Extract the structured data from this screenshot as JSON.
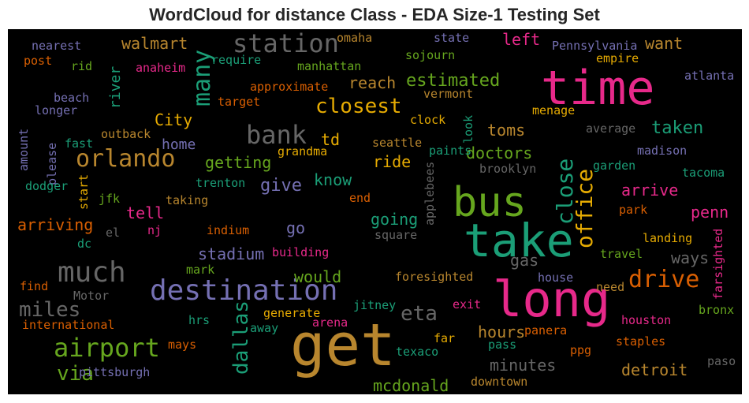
{
  "chart_data": {
    "type": "wordcloud",
    "title": "WordCloud for distance Class - EDA Size-1 Testing Set",
    "background": "#000000",
    "palette": "Dark2",
    "words": [
      {
        "text": "get",
        "color": "#b8862e"
      },
      {
        "text": "long",
        "color": "#e7298a"
      },
      {
        "text": "take",
        "color": "#1b9e77"
      },
      {
        "text": "time",
        "color": "#e7298a"
      },
      {
        "text": "bus",
        "color": "#66a61e"
      },
      {
        "text": "destination",
        "color": "#7570b3"
      },
      {
        "text": "much",
        "color": "#666666"
      },
      {
        "text": "station",
        "color": "#666666"
      },
      {
        "text": "airport",
        "color": "#66a61e"
      },
      {
        "text": "bank",
        "color": "#666666"
      },
      {
        "text": "orlando",
        "color": "#b8862e"
      },
      {
        "text": "many",
        "color": "#1b9e77"
      },
      {
        "text": "drive",
        "color": "#d95f02"
      },
      {
        "text": "office",
        "color": "#e6ab02"
      },
      {
        "text": "close",
        "color": "#1b9e77"
      },
      {
        "text": "closest",
        "color": "#e6ab02"
      },
      {
        "text": "dallas",
        "color": "#1b9e77"
      },
      {
        "text": "miles",
        "color": "#666666"
      },
      {
        "text": "via",
        "color": "#66a61e"
      },
      {
        "text": "eta",
        "color": "#666666"
      },
      {
        "text": "estimated",
        "color": "#66a61e"
      },
      {
        "text": "walmart",
        "color": "#b8862e"
      },
      {
        "text": "give",
        "color": "#7570b3"
      },
      {
        "text": "doctors",
        "color": "#66a61e"
      },
      {
        "text": "taken",
        "color": "#1b9e77"
      },
      {
        "text": "reach",
        "color": "#b8862e"
      },
      {
        "text": "stadium",
        "color": "#7570b3"
      },
      {
        "text": "getting",
        "color": "#66a61e"
      },
      {
        "text": "City",
        "color": "#e6ab02"
      },
      {
        "text": "tell",
        "color": "#e7298a"
      },
      {
        "text": "arriving",
        "color": "#d95f02"
      },
      {
        "text": "home",
        "color": "#7570b3"
      },
      {
        "text": "going",
        "color": "#1b9e77"
      },
      {
        "text": "hours",
        "color": "#b8862e"
      },
      {
        "text": "minutes",
        "color": "#666666"
      },
      {
        "text": "detroit",
        "color": "#b8862e"
      },
      {
        "text": "mcdonald",
        "color": "#66a61e"
      },
      {
        "text": "arrive",
        "color": "#e7298a"
      },
      {
        "text": "want",
        "color": "#b8862e"
      },
      {
        "text": "left",
        "color": "#e7298a"
      },
      {
        "text": "river",
        "color": "#1b9e77"
      },
      {
        "text": "toms",
        "color": "#b8862e"
      },
      {
        "text": "ride",
        "color": "#e6ab02"
      },
      {
        "text": "would",
        "color": "#66a61e"
      },
      {
        "text": "ways",
        "color": "#666666"
      },
      {
        "text": "penn",
        "color": "#e7298a"
      },
      {
        "text": "know",
        "color": "#1b9e77"
      },
      {
        "text": "go",
        "color": "#7570b3"
      },
      {
        "text": "td",
        "color": "#e6ab02"
      },
      {
        "text": "gas",
        "color": "#666666"
      },
      {
        "text": "nearest",
        "color": "#7570b3"
      },
      {
        "text": "post",
        "color": "#d95f02"
      },
      {
        "text": "rid",
        "color": "#66a61e"
      },
      {
        "text": "omaha",
        "color": "#b8862e"
      },
      {
        "text": "state",
        "color": "#7570b3"
      },
      {
        "text": "Pennsylvania",
        "color": "#7570b3"
      },
      {
        "text": "empire",
        "color": "#e6ab02"
      },
      {
        "text": "atlanta",
        "color": "#7570b3"
      },
      {
        "text": "anaheim",
        "color": "#e7298a"
      },
      {
        "text": "require",
        "color": "#1b9e77"
      },
      {
        "text": "manhattan",
        "color": "#66a61e"
      },
      {
        "text": "sojourn",
        "color": "#66a61e"
      },
      {
        "text": "approximate",
        "color": "#d95f02"
      },
      {
        "text": "vermont",
        "color": "#b8862e"
      },
      {
        "text": "beach",
        "color": "#7570b3"
      },
      {
        "text": "longer",
        "color": "#7570b3"
      },
      {
        "text": "target",
        "color": "#d95f02"
      },
      {
        "text": "menage",
        "color": "#e6ab02"
      },
      {
        "text": "clock",
        "color": "#e6ab02"
      },
      {
        "text": "look",
        "color": "#1b9e77"
      },
      {
        "text": "outback",
        "color": "#b8862e"
      },
      {
        "text": "fast",
        "color": "#1b9e77"
      },
      {
        "text": "amount",
        "color": "#7570b3"
      },
      {
        "text": "please",
        "color": "#7570b3"
      },
      {
        "text": "grandma",
        "color": "#e6ab02"
      },
      {
        "text": "seattle",
        "color": "#b8862e"
      },
      {
        "text": "paints",
        "color": "#1b9e77"
      },
      {
        "text": "average",
        "color": "#666666"
      },
      {
        "text": "madison",
        "color": "#7570b3"
      },
      {
        "text": "brooklyn",
        "color": "#666666"
      },
      {
        "text": "garden",
        "color": "#1b9e77"
      },
      {
        "text": "tacoma",
        "color": "#1b9e77"
      },
      {
        "text": "dodger",
        "color": "#1b9e77"
      },
      {
        "text": "start",
        "color": "#e6ab02"
      },
      {
        "text": "jfk",
        "color": "#66a61e"
      },
      {
        "text": "trenton",
        "color": "#1b9e77"
      },
      {
        "text": "taking",
        "color": "#b8862e"
      },
      {
        "text": "end",
        "color": "#d95f02"
      },
      {
        "text": "applebees",
        "color": "#666666"
      },
      {
        "text": "park",
        "color": "#d95f02"
      },
      {
        "text": "el",
        "color": "#666666"
      },
      {
        "text": "nj",
        "color": "#e7298a"
      },
      {
        "text": "indium",
        "color": "#d95f02"
      },
      {
        "text": "square",
        "color": "#666666"
      },
      {
        "text": "landing",
        "color": "#e6ab02"
      },
      {
        "text": "farsighted",
        "color": "#e7298a"
      },
      {
        "text": "dc",
        "color": "#1b9e77"
      },
      {
        "text": "building",
        "color": "#e7298a"
      },
      {
        "text": "travel",
        "color": "#66a61e"
      },
      {
        "text": "mark",
        "color": "#66a61e"
      },
      {
        "text": "foresighted",
        "color": "#b8862e"
      },
      {
        "text": "house",
        "color": "#7570b3"
      },
      {
        "text": "find",
        "color": "#d95f02"
      },
      {
        "text": "Motor",
        "color": "#666666"
      },
      {
        "text": "need",
        "color": "#b8862e"
      },
      {
        "text": "generate",
        "color": "#e6ab02"
      },
      {
        "text": "jitney",
        "color": "#1b9e77"
      },
      {
        "text": "exit",
        "color": "#e7298a"
      },
      {
        "text": "international",
        "color": "#d95f02"
      },
      {
        "text": "hrs",
        "color": "#1b9e77"
      },
      {
        "text": "away",
        "color": "#1b9e77"
      },
      {
        "text": "arena",
        "color": "#e7298a"
      },
      {
        "text": "panera",
        "color": "#d95f02"
      },
      {
        "text": "houston",
        "color": "#e7298a"
      },
      {
        "text": "bronx",
        "color": "#66a61e"
      },
      {
        "text": "mays",
        "color": "#d95f02"
      },
      {
        "text": "far",
        "color": "#e6ab02"
      },
      {
        "text": "pass",
        "color": "#1b9e77"
      },
      {
        "text": "ppg",
        "color": "#d95f02"
      },
      {
        "text": "staples",
        "color": "#d95f02"
      },
      {
        "text": "texaco",
        "color": "#1b9e77"
      },
      {
        "text": "pittsburgh",
        "color": "#7570b3"
      },
      {
        "text": "paso",
        "color": "#666666"
      },
      {
        "text": "downtown",
        "color": "#b8862e"
      }
    ]
  }
}
